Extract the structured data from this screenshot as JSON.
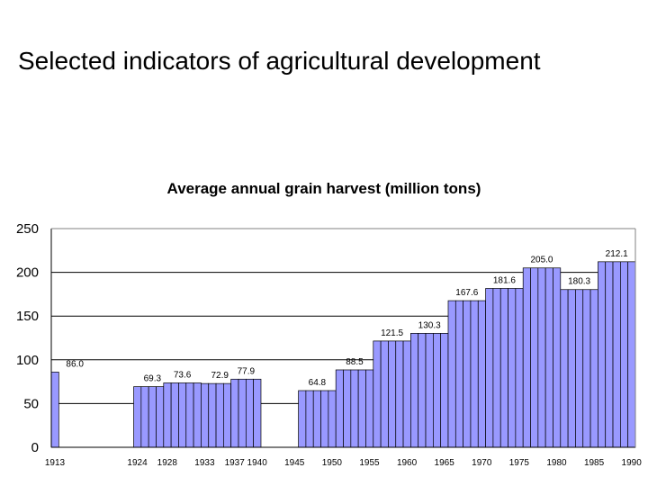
{
  "page": {
    "title": "Selected indicators of agricultural development"
  },
  "chart_data": {
    "type": "bar",
    "title": "Average annual grain harvest (million tons)",
    "xlabel": "",
    "ylabel": "",
    "ylim": [
      0,
      250
    ],
    "yticks": [
      0,
      50,
      100,
      150,
      200,
      250
    ],
    "xlim": [
      1913,
      1990
    ],
    "xtick_labels": [
      {
        "x": 1913,
        "label": "1913"
      },
      {
        "x": 1924,
        "label": "1924"
      },
      {
        "x": 1928,
        "label": "1928"
      },
      {
        "x": 1933,
        "label": "1933"
      },
      {
        "x": 1937,
        "label": "1937"
      },
      {
        "x": 1940,
        "label": "1940"
      },
      {
        "x": 1945,
        "label": "1945"
      },
      {
        "x": 1950,
        "label": "1950"
      },
      {
        "x": 1955,
        "label": "1955"
      },
      {
        "x": 1960,
        "label": "1960"
      },
      {
        "x": 1965,
        "label": "1965"
      },
      {
        "x": 1970,
        "label": "1970"
      },
      {
        "x": 1975,
        "label": "1975"
      },
      {
        "x": 1980,
        "label": "1980"
      },
      {
        "x": 1985,
        "label": "1985"
      },
      {
        "x": 1990,
        "label": "1990"
      }
    ],
    "grid": true,
    "legend": "none",
    "bar_color": "#9999ff",
    "periods": [
      {
        "start": 1913,
        "end": 1913,
        "value": 86.0,
        "label": "86.0"
      },
      {
        "start": 1924,
        "end": 1928,
        "value": 69.3,
        "label": "69.3"
      },
      {
        "start": 1928,
        "end": 1932,
        "value": 73.6,
        "label": "73.6"
      },
      {
        "start": 1933,
        "end": 1937,
        "value": 72.9,
        "label": "72.9"
      },
      {
        "start": 1937,
        "end": 1940,
        "value": 77.9,
        "label": "77.9"
      },
      {
        "start": 1946,
        "end": 1950,
        "value": 64.8,
        "label": "64.8"
      },
      {
        "start": 1951,
        "end": 1955,
        "value": 88.5,
        "label": "88.5"
      },
      {
        "start": 1956,
        "end": 1960,
        "value": 121.5,
        "label": "121.5"
      },
      {
        "start": 1961,
        "end": 1965,
        "value": 130.3,
        "label": "130.3"
      },
      {
        "start": 1966,
        "end": 1970,
        "value": 167.6,
        "label": "167.6"
      },
      {
        "start": 1971,
        "end": 1975,
        "value": 181.6,
        "label": "181.6"
      },
      {
        "start": 1976,
        "end": 1980,
        "value": 205.0,
        "label": "205.0"
      },
      {
        "start": 1981,
        "end": 1985,
        "value": 180.3,
        "label": "180.3"
      },
      {
        "start": 1986,
        "end": 1990,
        "value": 212.1,
        "label": "212.1"
      }
    ]
  }
}
